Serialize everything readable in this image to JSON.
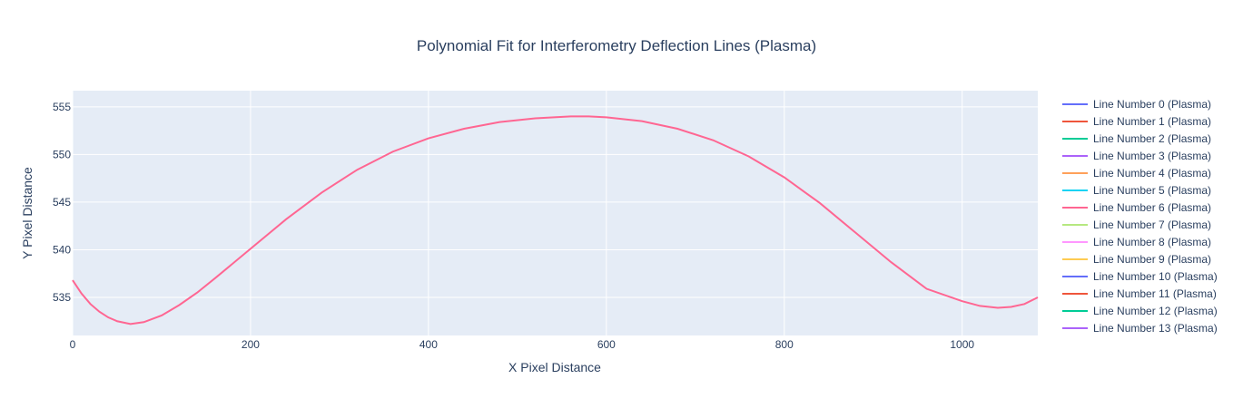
{
  "chart_data": {
    "type": "line",
    "title": "Polynomial Fit for Interferometry Deflection Lines (Plasma)",
    "xlabel": "X Pixel Distance",
    "ylabel": "Y Pixel Distance",
    "xlim": [
      0,
      1085
    ],
    "ylim": [
      531,
      556.7
    ],
    "x_ticks": [
      0,
      200,
      400,
      600,
      800,
      1000
    ],
    "y_ticks": [
      535,
      540,
      545,
      550,
      555
    ],
    "grid": true,
    "legend_position": "right",
    "plot_background": "#e5ecf6",
    "series": [
      {
        "name": "Line Number 0 (Plasma)",
        "color": "#636efa",
        "x": [],
        "y": []
      },
      {
        "name": "Line Number 1 (Plasma)",
        "color": "#ef553b",
        "x": [],
        "y": []
      },
      {
        "name": "Line Number 2 (Plasma)",
        "color": "#00cc96",
        "x": [],
        "y": []
      },
      {
        "name": "Line Number 3 (Plasma)",
        "color": "#ab63fa",
        "x": [],
        "y": []
      },
      {
        "name": "Line Number 4 (Plasma)",
        "color": "#ffa15a",
        "x": [],
        "y": []
      },
      {
        "name": "Line Number 5 (Plasma)",
        "color": "#19d3f3",
        "x": [],
        "y": []
      },
      {
        "name": "Line Number 6 (Plasma)",
        "color": "#ff6692",
        "x": [
          0,
          10,
          20,
          30,
          40,
          50,
          65,
          80,
          100,
          120,
          140,
          160,
          200,
          240,
          280,
          320,
          360,
          400,
          440,
          480,
          520,
          560,
          580,
          600,
          640,
          680,
          720,
          760,
          800,
          840,
          880,
          920,
          960,
          1000,
          1020,
          1040,
          1055,
          1070,
          1085
        ],
        "y": [
          536.8,
          535.4,
          534.3,
          533.5,
          532.9,
          532.5,
          532.2,
          532.4,
          533.1,
          534.2,
          535.5,
          537.0,
          540.1,
          543.2,
          546.0,
          548.4,
          550.3,
          551.7,
          552.7,
          553.4,
          553.8,
          554.0,
          554.0,
          553.9,
          553.5,
          552.7,
          551.5,
          549.8,
          547.6,
          544.9,
          541.8,
          538.7,
          535.9,
          534.6,
          534.1,
          533.9,
          534.0,
          534.3,
          535.0
        ]
      },
      {
        "name": "Line Number 7 (Plasma)",
        "color": "#b6e880",
        "x": [],
        "y": []
      },
      {
        "name": "Line Number 8 (Plasma)",
        "color": "#ff97ff",
        "x": [],
        "y": []
      },
      {
        "name": "Line Number 9 (Plasma)",
        "color": "#fecb52",
        "x": [],
        "y": []
      },
      {
        "name": "Line Number 10 (Plasma)",
        "color": "#636efa",
        "x": [],
        "y": []
      },
      {
        "name": "Line Number 11 (Plasma)",
        "color": "#ef553b",
        "x": [],
        "y": []
      },
      {
        "name": "Line Number 12 (Plasma)",
        "color": "#00cc96",
        "x": [],
        "y": []
      },
      {
        "name": "Line Number 13 (Plasma)",
        "color": "#ab63fa",
        "x": [],
        "y": []
      }
    ]
  }
}
